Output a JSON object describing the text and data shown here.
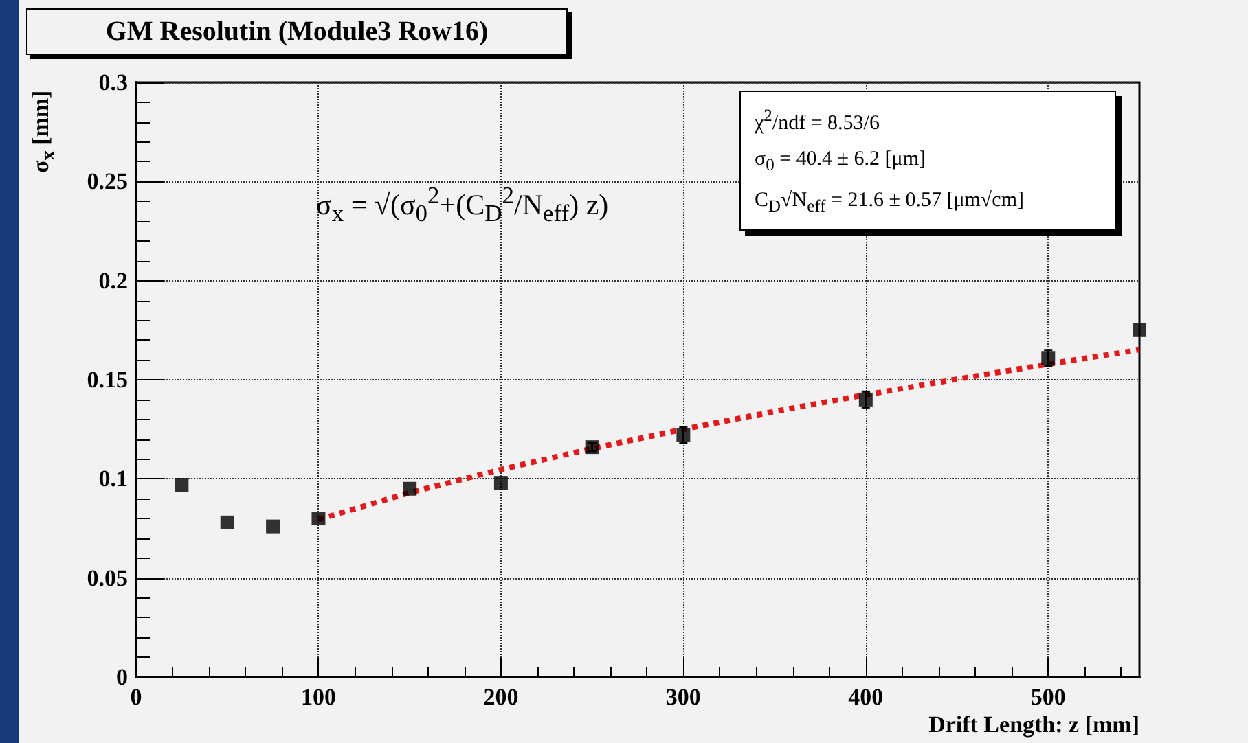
{
  "chart_data": {
    "type": "scatter",
    "title": "GM Resolutin (Module3 Row16)",
    "xlabel": "Drift Length: z [mm]",
    "ylabel": "σ$_{x}$ [mm]",
    "annotations": [
      "σ$_{x}$ = √(σ$_{0}$$^{2}$+(C$_{D}$$^{2}$/N$_{eff}$) z)",
      "χ$^{2}$/ndf = 8.53/6",
      "σ$_{0}$ =  40.4 ±  6.2 [μm]",
      "C$_{D}$√N$_{eff}$ =  21.6 ± 0.57 [μm√cm]"
    ],
    "xlim": [
      0,
      550
    ],
    "xticks": [
      0,
      100,
      200,
      300,
      400,
      500
    ],
    "ylim": [
      0,
      0.3
    ],
    "yticks": [
      0,
      0.05,
      0.1,
      0.15,
      0.2,
      0.25,
      0.3
    ],
    "grid": true,
    "marker": "square",
    "series": [
      {
        "color": "#000000",
        "x": [
          25,
          50,
          75,
          100,
          150,
          200,
          250,
          300,
          400,
          500,
          550
        ],
        "values": [
          0.097,
          0.078,
          0.076,
          0.08,
          0.095,
          0.098,
          0.116,
          0.122,
          0.14,
          0.161,
          0.175
        ],
        "errors": [
          null,
          null,
          null,
          null,
          null,
          null,
          0.002,
          0.004,
          0.004,
          0.004,
          null
        ]
      },
      {
        "type": "line",
        "color": "#e31a1c",
        "line_style": "dotted",
        "marker": "none",
        "x": [
          100,
          150,
          200,
          250,
          300,
          350,
          400,
          450,
          500,
          550
        ],
        "values": [
          0.0795,
          0.093,
          0.1047,
          0.1153,
          0.125,
          0.134,
          0.1424,
          0.1503,
          0.1579,
          0.1651
        ]
      }
    ]
  }
}
